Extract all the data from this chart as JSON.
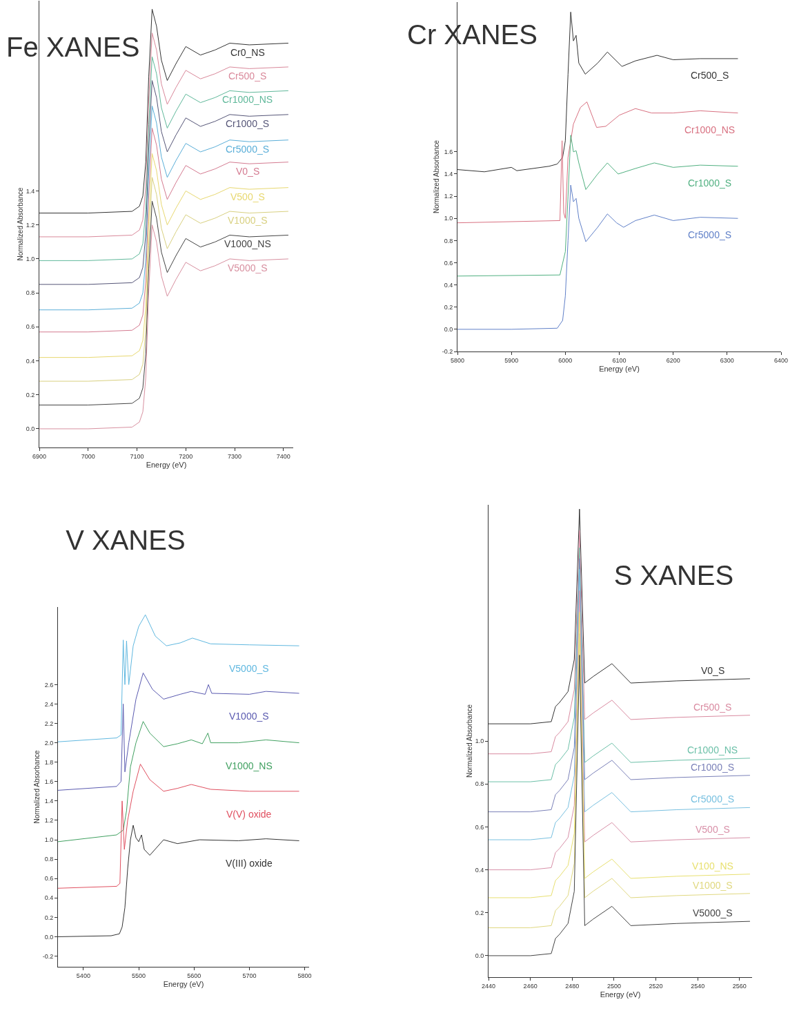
{
  "chart_data": [
    {
      "type": "line",
      "title": "Fe XANES",
      "xlabel": "Energy (eV)",
      "ylabel": "Normalized Absorbance",
      "xlim": [
        6900,
        7420
      ],
      "ylim": [
        -0.11,
        2.52
      ],
      "xticks": [
        6900,
        7000,
        7100,
        7200,
        7300,
        7400
      ],
      "yticks": [
        {
          "value": 0,
          "label": "0.0"
        },
        0.2,
        0.4,
        0.6,
        0.8,
        {
          "value": 1,
          "label": "1.0"
        },
        1.2,
        1.4
      ],
      "x": [
        6900,
        7000,
        7090,
        7105,
        7112,
        7118,
        7124,
        7131,
        7140,
        7150,
        7162,
        7180,
        7200,
        7230,
        7260,
        7290,
        7330,
        7410
      ],
      "series": [
        {
          "name": "Cr0_NS",
          "color": "#333333",
          "values": [
            1.27,
            1.27,
            1.28,
            1.31,
            1.37,
            1.57,
            2.07,
            2.47,
            2.37,
            2.17,
            2.05,
            2.15,
            2.25,
            2.2,
            2.23,
            2.27,
            2.26,
            2.27
          ]
        },
        {
          "name": "Cr500_S",
          "color": "#d9889a",
          "values": [
            1.13,
            1.13,
            1.14,
            1.17,
            1.23,
            1.43,
            1.93,
            2.33,
            2.23,
            2.03,
            1.91,
            2.01,
            2.11,
            2.06,
            2.09,
            2.13,
            2.12,
            2.13
          ]
        },
        {
          "name": "Cr1000_NS",
          "color": "#5fb89a",
          "values": [
            0.99,
            0.99,
            1.0,
            1.03,
            1.09,
            1.29,
            1.79,
            2.19,
            2.09,
            1.89,
            1.77,
            1.87,
            1.97,
            1.92,
            1.95,
            1.99,
            1.98,
            1.99
          ]
        },
        {
          "name": "Cr1000_S",
          "color": "#555577",
          "values": [
            0.85,
            0.85,
            0.86,
            0.89,
            0.95,
            1.15,
            1.65,
            2.05,
            1.95,
            1.75,
            1.63,
            1.73,
            1.83,
            1.78,
            1.81,
            1.85,
            1.84,
            1.85
          ]
        },
        {
          "name": "Cr5000_S",
          "color": "#5aaed8",
          "values": [
            0.7,
            0.7,
            0.71,
            0.74,
            0.8,
            1.0,
            1.5,
            1.9,
            1.8,
            1.6,
            1.48,
            1.58,
            1.68,
            1.63,
            1.66,
            1.7,
            1.69,
            1.7
          ]
        },
        {
          "name": "V0_S",
          "color": "#d47a90",
          "values": [
            0.57,
            0.57,
            0.58,
            0.61,
            0.67,
            0.87,
            1.37,
            1.77,
            1.67,
            1.47,
            1.35,
            1.45,
            1.55,
            1.5,
            1.53,
            1.57,
            1.56,
            1.57
          ]
        },
        {
          "name": "V500_S",
          "color": "#e8d870",
          "values": [
            0.42,
            0.42,
            0.43,
            0.46,
            0.52,
            0.72,
            1.22,
            1.62,
            1.52,
            1.32,
            1.2,
            1.3,
            1.4,
            1.35,
            1.38,
            1.42,
            1.41,
            1.42
          ]
        },
        {
          "name": "V1000_S",
          "color": "#d8d080",
          "values": [
            0.28,
            0.28,
            0.29,
            0.32,
            0.38,
            0.58,
            1.08,
            1.48,
            1.38,
            1.18,
            1.06,
            1.16,
            1.26,
            1.21,
            1.24,
            1.28,
            1.27,
            1.28
          ]
        },
        {
          "name": "V1000_NS",
          "color": "#444444",
          "values": [
            0.14,
            0.14,
            0.15,
            0.18,
            0.24,
            0.44,
            0.94,
            1.34,
            1.24,
            1.04,
            0.92,
            1.02,
            1.12,
            1.07,
            1.1,
            1.14,
            1.13,
            1.14
          ]
        },
        {
          "name": "V5000_S",
          "color": "#d890a0",
          "values": [
            0,
            0,
            0.01,
            0.04,
            0.1,
            0.3,
            0.8,
            1.2,
            1.1,
            0.9,
            0.78,
            0.88,
            0.98,
            0.93,
            0.96,
            1.0,
            0.99,
            1.0
          ]
        }
      ]
    },
    {
      "type": "line",
      "title": "Cr XANES",
      "xlabel": "Energy (eV)",
      "ylabel": "Normalized Absorbance",
      "xlim": [
        5800,
        6400
      ],
      "ylim": [
        -0.2,
        2.95
      ],
      "xticks": [
        5800,
        5900,
        6000,
        6100,
        6200,
        6300,
        6400
      ],
      "yticks": [
        -0.2,
        {
          "value": 0,
          "label": "0.0"
        },
        0.2,
        0.4,
        0.6,
        0.8,
        {
          "value": 1,
          "label": "1.0"
        },
        1.2,
        1.4,
        1.6
      ],
      "series": [
        {
          "name": "Cr500_S",
          "color": "#333333",
          "x": [
            5800,
            5850,
            5900,
            5910,
            5970,
            5985,
            5995,
            6000,
            6005,
            6010,
            6015,
            6020,
            6025,
            6037,
            6060,
            6078,
            6105,
            6130,
            6170,
            6200,
            6250,
            6320
          ],
          "values": [
            1.44,
            1.42,
            1.46,
            1.43,
            1.47,
            1.49,
            1.55,
            1.7,
            2.3,
            2.86,
            2.6,
            2.65,
            2.4,
            2.3,
            2.4,
            2.5,
            2.37,
            2.42,
            2.47,
            2.43,
            2.44,
            2.44
          ]
        },
        {
          "name": "Cr1000_NS",
          "color": "#d87080",
          "x": [
            5800,
            5990,
            5994,
            5997,
            6000,
            6005,
            6015,
            6028,
            6040,
            6058,
            6075,
            6100,
            6130,
            6160,
            6200,
            6250,
            6320
          ],
          "values": [
            0.96,
            0.98,
            1.7,
            1.05,
            1.0,
            1.55,
            1.85,
            2.0,
            2.05,
            1.82,
            1.83,
            1.93,
            1.99,
            1.95,
            1.95,
            1.97,
            1.95
          ]
        },
        {
          "name": "Cr1000_S",
          "color": "#50b080",
          "x": [
            5800,
            5990,
            6000,
            6005,
            6010,
            6015,
            6020,
            6025,
            6038,
            6060,
            6078,
            6098,
            6130,
            6165,
            6200,
            6250,
            6320
          ],
          "values": [
            0.48,
            0.49,
            0.7,
            1.2,
            1.75,
            1.6,
            1.61,
            1.5,
            1.26,
            1.4,
            1.5,
            1.4,
            1.45,
            1.5,
            1.46,
            1.48,
            1.47
          ]
        },
        {
          "name": "Cr5000_S",
          "color": "#6080c8",
          "x": [
            5800,
            5900,
            5985,
            5995,
            6000,
            6005,
            6010,
            6015,
            6020,
            6025,
            6038,
            6060,
            6078,
            6095,
            6108,
            6130,
            6165,
            6200,
            6250,
            6320
          ],
          "values": [
            0,
            0,
            0.01,
            0.08,
            0.3,
            0.8,
            1.3,
            1.15,
            1.18,
            1.0,
            0.79,
            0.92,
            1.04,
            0.96,
            0.92,
            0.98,
            1.03,
            0.98,
            1.01,
            1.0
          ]
        }
      ]
    },
    {
      "type": "line",
      "title": "V XANES",
      "xlabel": "Energy (eV)",
      "ylabel": "Normalized Absorbance",
      "xlim": [
        5354,
        5808
      ],
      "ylim": [
        -0.31,
        3.4
      ],
      "xticks": [
        5400,
        5500,
        5600,
        5700,
        5800
      ],
      "yticks": [
        -0.2,
        {
          "value": 0,
          "label": "0.0"
        },
        0.2,
        0.4,
        0.6,
        0.8,
        {
          "value": 1,
          "label": "1.0"
        },
        1.2,
        1.4,
        1.6,
        1.8,
        {
          "value": 2,
          "label": "2.0"
        },
        2.2,
        2.4,
        2.6
      ],
      "series": [
        {
          "name": "V5000_S",
          "color": "#60b8e0",
          "x": [
            5354,
            5460,
            5468,
            5472,
            5475,
            5478,
            5482,
            5490,
            5500,
            5512,
            5530,
            5550,
            5575,
            5597,
            5630,
            5700,
            5790
          ],
          "values": [
            2.01,
            2.05,
            2.08,
            3.06,
            2.6,
            3.05,
            2.6,
            3.0,
            3.2,
            3.32,
            3.1,
            3.0,
            3.03,
            3.08,
            3.02,
            3.01,
            3.0
          ]
        },
        {
          "name": "V1000_S",
          "color": "#5a5ab0",
          "x": [
            5354,
            5460,
            5468,
            5472,
            5475,
            5482,
            5495,
            5508,
            5525,
            5545,
            5575,
            5595,
            5620,
            5626,
            5632,
            5700,
            5730,
            5790
          ],
          "values": [
            1.51,
            1.55,
            1.6,
            2.4,
            1.7,
            2.0,
            2.45,
            2.72,
            2.55,
            2.45,
            2.5,
            2.53,
            2.5,
            2.6,
            2.51,
            2.5,
            2.53,
            2.51
          ]
        },
        {
          "name": "V1000_NS",
          "color": "#40a060",
          "x": [
            5354,
            5460,
            5472,
            5478,
            5485,
            5495,
            5508,
            5520,
            5545,
            5570,
            5595,
            5615,
            5625,
            5630,
            5680,
            5730,
            5790
          ],
          "values": [
            0.98,
            1.05,
            1.1,
            1.3,
            1.75,
            2.0,
            2.22,
            2.1,
            1.96,
            1.99,
            2.03,
            1.99,
            2.1,
            2.0,
            2.0,
            2.03,
            2.0
          ]
        },
        {
          "name": "V(V) oxide",
          "color": "#e05060",
          "x": [
            5354,
            5460,
            5466,
            5470,
            5474,
            5480,
            5490,
            5503,
            5520,
            5545,
            5570,
            5595,
            5630,
            5700,
            5790
          ],
          "values": [
            0.5,
            0.52,
            0.55,
            1.4,
            0.9,
            1.2,
            1.5,
            1.78,
            1.62,
            1.5,
            1.53,
            1.57,
            1.52,
            1.5,
            1.5
          ]
        },
        {
          "name": "V(III) oxide",
          "color": "#333333",
          "x": [
            5354,
            5450,
            5465,
            5470,
            5475,
            5480,
            5485,
            5490,
            5495,
            5500,
            5505,
            5510,
            5520,
            5545,
            5570,
            5610,
            5680,
            5730,
            5790
          ],
          "values": [
            0,
            0.01,
            0.03,
            0.1,
            0.3,
            0.7,
            1.0,
            1.15,
            1.02,
            0.98,
            1.05,
            0.9,
            0.84,
            1.0,
            0.96,
            1.0,
            0.99,
            1.01,
            0.99
          ]
        }
      ]
    },
    {
      "type": "line",
      "title": "S XANES",
      "xlabel": "Energy (eV)",
      "ylabel": "Normalized Absorbance",
      "xlim": [
        2440,
        2566
      ],
      "ylim": [
        -0.1,
        2.1
      ],
      "xticks": [
        2440,
        2460,
        2480,
        2500,
        2520,
        2540,
        2560
      ],
      "yticks": [
        {
          "value": 0,
          "label": "0.0"
        },
        0.2,
        0.4,
        0.6,
        0.8,
        {
          "value": 1,
          "label": "1.0"
        }
      ],
      "x": [
        2440,
        2460,
        2470,
        2472,
        2474,
        2478,
        2481,
        2483.5,
        2486,
        2490,
        2499,
        2508,
        2530,
        2565
      ],
      "series": [
        {
          "name": "V0_S",
          "color": "#333333",
          "values": [
            1.08,
            1.08,
            1.09,
            1.16,
            1.18,
            1.23,
            1.38,
            2.08,
            1.27,
            1.3,
            1.36,
            1.27,
            1.28,
            1.29
          ]
        },
        {
          "name": "Cr500_S",
          "color": "#d98aa0",
          "values": [
            0.94,
            0.94,
            0.95,
            1.02,
            1.04,
            1.09,
            1.24,
            1.98,
            1.1,
            1.13,
            1.19,
            1.1,
            1.11,
            1.12
          ]
        },
        {
          "name": "Cr1000_NS",
          "color": "#6cc0a8",
          "values": [
            0.81,
            0.81,
            0.82,
            0.89,
            0.91,
            0.96,
            1.11,
            1.9,
            0.9,
            0.93,
            0.99,
            0.9,
            0.91,
            0.92
          ]
        },
        {
          "name": "Cr1000_S",
          "color": "#7a80b8",
          "values": [
            0.67,
            0.67,
            0.68,
            0.75,
            0.77,
            0.82,
            0.97,
            1.85,
            0.82,
            0.85,
            0.91,
            0.82,
            0.83,
            0.84
          ]
        },
        {
          "name": "Cr5000_S",
          "color": "#78c0e0",
          "values": [
            0.54,
            0.54,
            0.55,
            0.62,
            0.64,
            0.69,
            0.84,
            1.8,
            0.67,
            0.7,
            0.76,
            0.67,
            0.68,
            0.69
          ]
        },
        {
          "name": "V500_S",
          "color": "#d890a8",
          "values": [
            0.4,
            0.4,
            0.41,
            0.48,
            0.5,
            0.55,
            0.7,
            1.7,
            0.53,
            0.56,
            0.62,
            0.53,
            0.54,
            0.55
          ]
        },
        {
          "name": "V100_NS",
          "color": "#e8e070",
          "values": [
            0.27,
            0.27,
            0.28,
            0.35,
            0.37,
            0.42,
            0.57,
            1.6,
            0.36,
            0.39,
            0.45,
            0.36,
            0.37,
            0.38
          ]
        },
        {
          "name": "V1000_S",
          "color": "#e0d880",
          "values": [
            0.13,
            0.13,
            0.14,
            0.21,
            0.23,
            0.28,
            0.43,
            1.5,
            0.27,
            0.3,
            0.36,
            0.27,
            0.28,
            0.29
          ]
        },
        {
          "name": "V5000_S",
          "color": "#444444",
          "values": [
            0,
            0,
            0.01,
            0.08,
            0.1,
            0.15,
            0.3,
            1.4,
            0.14,
            0.17,
            0.23,
            0.14,
            0.15,
            0.16
          ]
        }
      ]
    }
  ]
}
